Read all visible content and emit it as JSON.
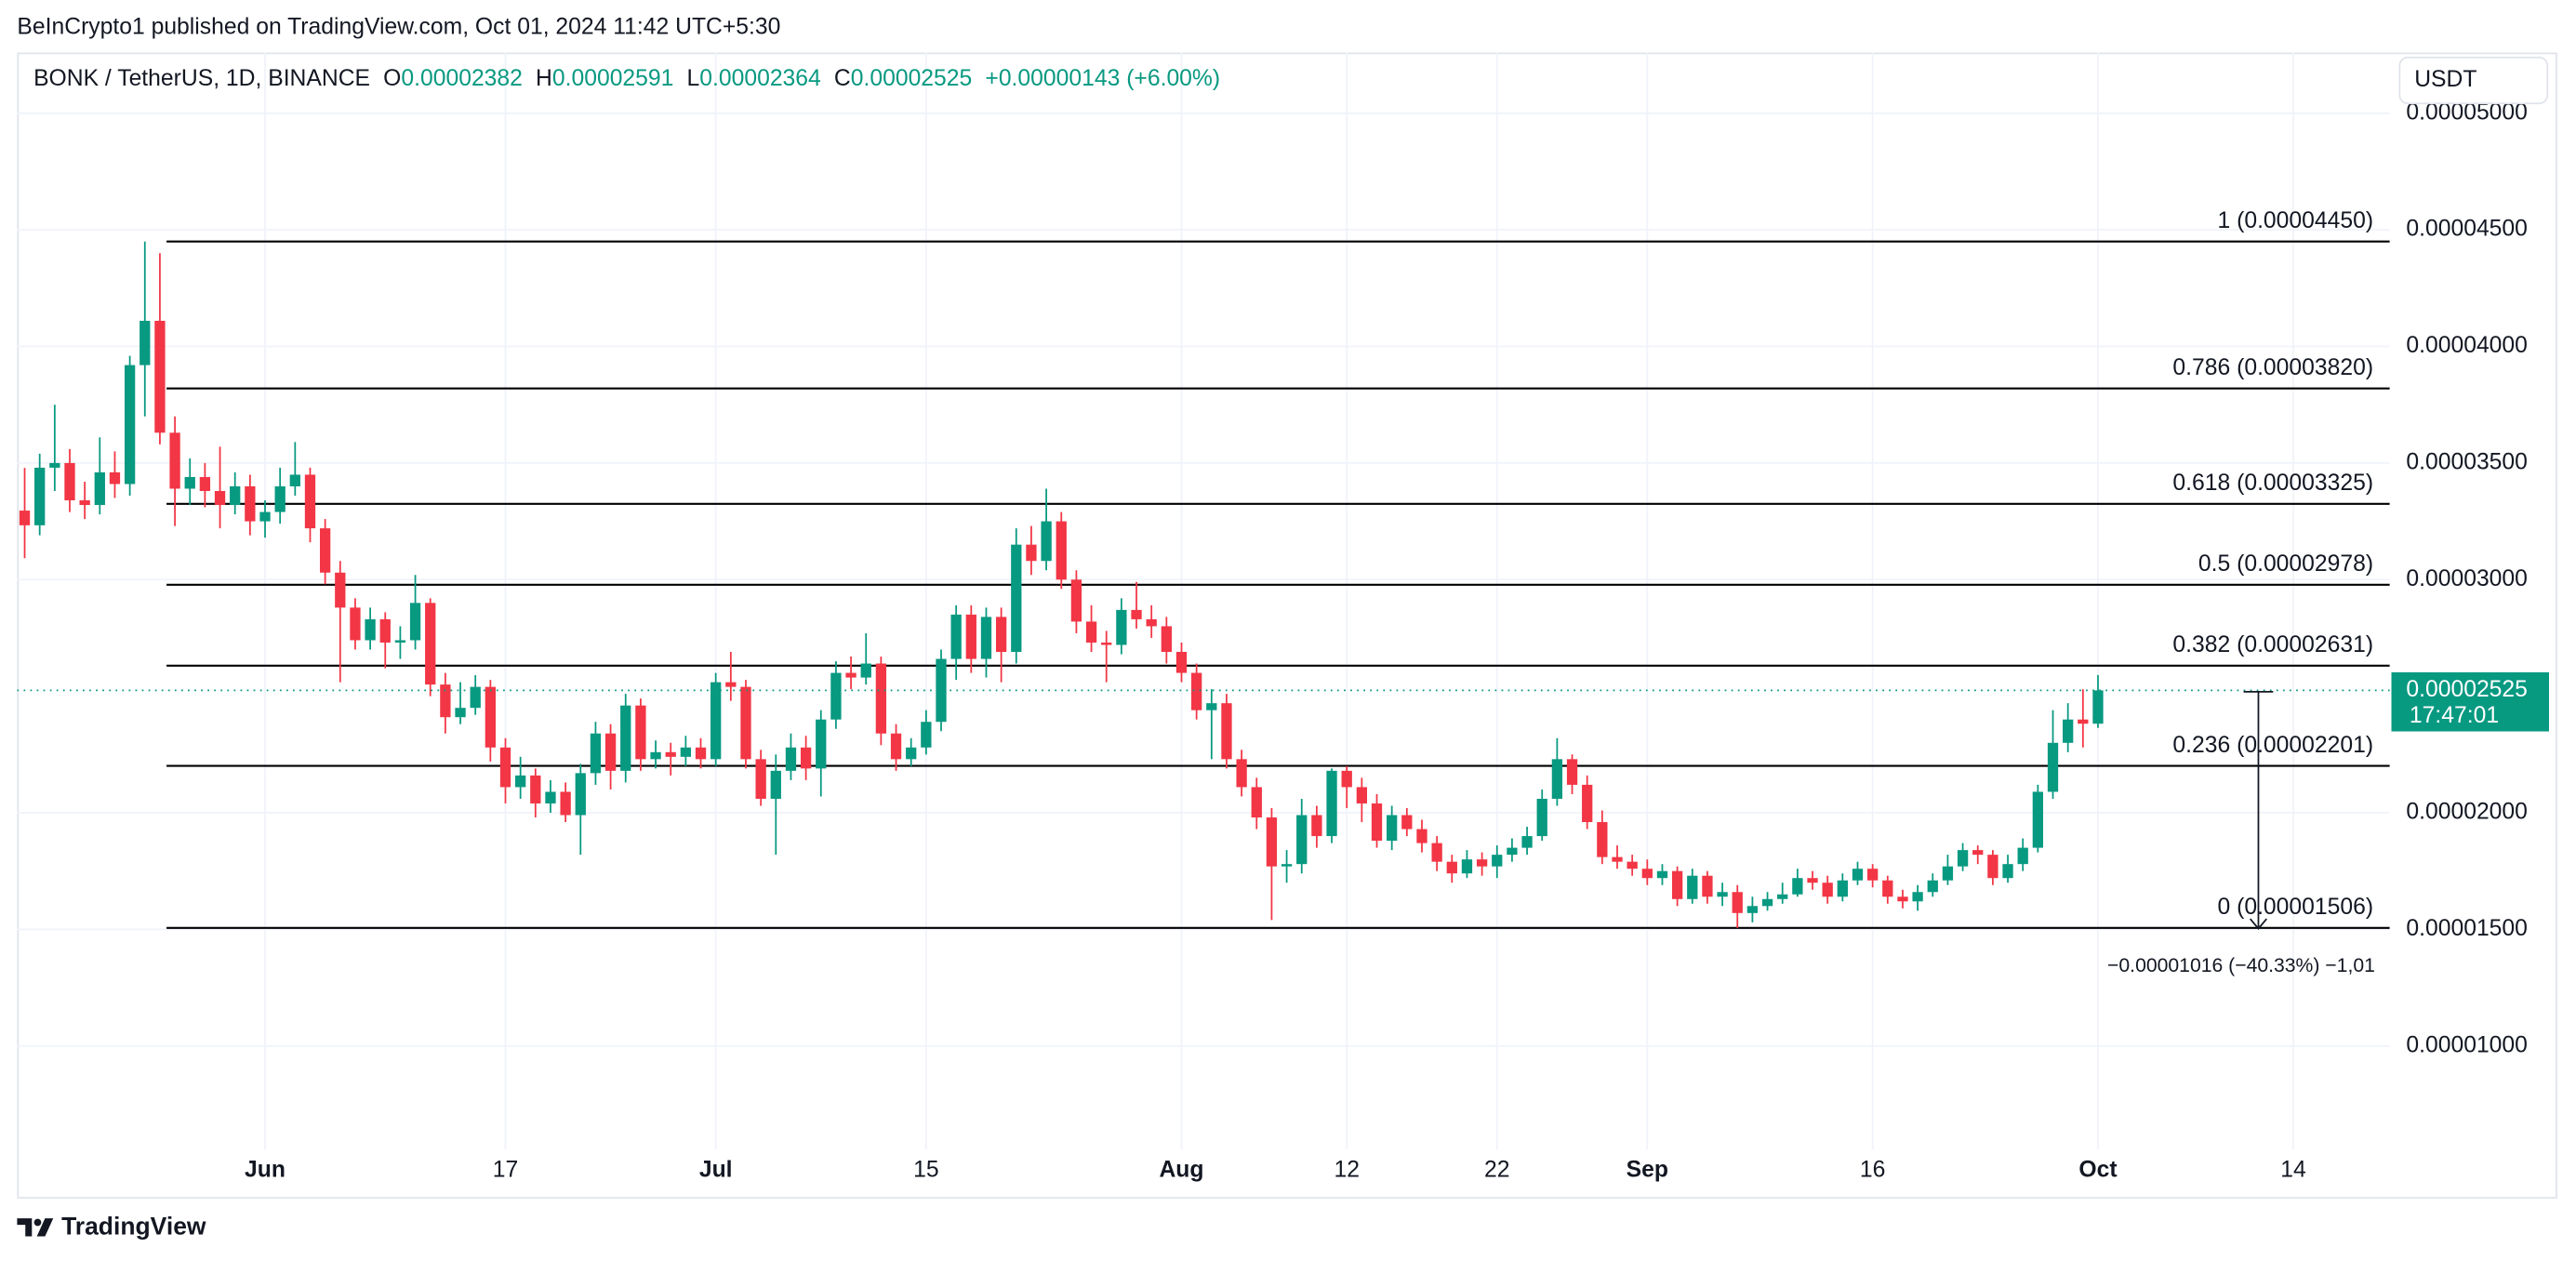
{
  "published": "BeInCrypto1 published on TradingView.com, Oct 01, 2024 11:42 UTC+5:30",
  "legend": {
    "symbol": "BONK / TetherUS, 1D, BINANCE",
    "items": [
      {
        "key": "O",
        "value": "0.00002382"
      },
      {
        "key": "H",
        "value": "0.00002591"
      },
      {
        "key": "L",
        "value": "0.00002364"
      },
      {
        "key": "C",
        "value": "0.00002525"
      }
    ],
    "change": "+0.00000143 (+6.00%)"
  },
  "currency_button": "USDT",
  "footer": "TradingView",
  "chart_data": {
    "type": "candlestick",
    "up_color": "#089981",
    "down_color": "#f23645",
    "categories": [
      null,
      null,
      null,
      null,
      null,
      null,
      null,
      null,
      null,
      null,
      null,
      null,
      null,
      null,
      null,
      null,
      "Jun",
      null,
      null,
      null,
      null,
      null,
      null,
      null,
      null,
      null,
      null,
      null,
      null,
      null,
      null,
      null,
      "17",
      null,
      null,
      null,
      null,
      null,
      null,
      null,
      null,
      null,
      null,
      null,
      null,
      null,
      "Jul",
      null,
      null,
      null,
      null,
      null,
      null,
      null,
      null,
      null,
      null,
      null,
      null,
      null,
      "15",
      null,
      null,
      null,
      null,
      null,
      null,
      null,
      null,
      null,
      null,
      null,
      null,
      null,
      null,
      null,
      null,
      "Aug",
      null,
      null,
      null,
      null,
      null,
      null,
      null,
      null,
      null,
      null,
      "12",
      null,
      null,
      null,
      null,
      null,
      null,
      null,
      null,
      null,
      "22",
      null,
      null,
      null,
      null,
      null,
      null,
      null,
      null,
      null,
      "Sep",
      null,
      null,
      null,
      null,
      null,
      null,
      null,
      null,
      null,
      null,
      null,
      null,
      null,
      null,
      "16",
      null,
      null,
      null,
      null,
      null,
      null,
      null,
      null,
      null,
      null,
      null,
      null,
      null,
      null,
      "Oct",
      null,
      null,
      null,
      null,
      null,
      null,
      null,
      null,
      null,
      null,
      null,
      null,
      "14",
      null,
      null,
      null,
      null,
      null,
      null
    ],
    "open": [
      3.296e-05,
      3.233e-05,
      3.48e-05,
      3.5e-05,
      3.34e-05,
      3.32e-05,
      3.46e-05,
      3.41e-05,
      3.92e-05,
      4.11e-05,
      3.63e-05,
      3.39e-05,
      3.44e-05,
      3.38e-05,
      3.32e-05,
      3.4e-05,
      3.25e-05,
      3.29e-05,
      3.4e-05,
      3.45e-05,
      3.22e-05,
      3.03e-05,
      2.88e-05,
      2.74e-05,
      2.83e-05,
      2.73e-05,
      2.74e-05,
      2.9e-05,
      2.55e-05,
      2.41e-05,
      2.45e-05,
      2.54e-05,
      2.28e-05,
      2.11e-05,
      2.16e-05,
      2.04e-05,
      2.09e-05,
      1.99e-05,
      2.17e-05,
      2.34e-05,
      2.18e-05,
      2.46e-05,
      2.23e-05,
      2.26e-05,
      2.24e-05,
      2.28e-05,
      2.23e-05,
      2.56e-05,
      2.54e-05,
      2.23e-05,
      2.06e-05,
      2.18e-05,
      2.28e-05,
      2.19e-05,
      2.4e-05,
      2.6e-05,
      2.58e-05,
      2.64e-05,
      2.34e-05,
      2.23e-05,
      2.28e-05,
      2.39e-05,
      2.66e-05,
      2.85e-05,
      2.66e-05,
      2.84e-05,
      2.69e-05,
      3.15e-05,
      3.08e-05,
      3.25e-05,
      3e-05,
      2.82e-05,
      2.73e-05,
      2.72e-05,
      2.87e-05,
      2.83e-05,
      2.8e-05,
      2.69e-05,
      2.6e-05,
      2.44e-05,
      2.47e-05,
      2.23e-05,
      2.11e-05,
      1.98e-05,
      1.77e-05,
      1.78e-05,
      1.99e-05,
      1.9e-05,
      2.18e-05,
      2.11e-05,
      2.04e-05,
      1.88e-05,
      1.99e-05,
      1.93e-05,
      1.87e-05,
      1.79e-05,
      1.74e-05,
      1.8e-05,
      1.77e-05,
      1.82e-05,
      1.85e-05,
      1.9e-05,
      2.06e-05,
      2.23e-05,
      2.12e-05,
      1.96e-05,
      1.81e-05,
      1.79e-05,
      1.76e-05,
      1.72e-05,
      1.75e-05,
      1.63e-05,
      1.73e-05,
      1.64e-05,
      1.66e-05,
      1.57e-05,
      1.6e-05,
      1.63e-05,
      1.65e-05,
      1.72e-05,
      1.7e-05,
      1.64e-05,
      1.71e-05,
      1.76e-05,
      1.71e-05,
      1.64e-05,
      1.62e-05,
      1.66e-05,
      1.71e-05,
      1.77e-05,
      1.84e-05,
      1.82e-05,
      1.72e-05,
      1.78e-05,
      1.85e-05,
      2.09e-05,
      2.3e-05,
      2.4e-05,
      2.382e-05,
      null,
      null,
      null,
      null,
      null,
      null,
      null,
      null,
      null,
      null,
      null,
      null,
      null,
      null,
      null,
      null,
      null,
      null,
      null
    ],
    "high": [
      3.479e-05,
      3.54e-05,
      3.75e-05,
      3.56e-05,
      3.42e-05,
      3.61e-05,
      3.55e-05,
      3.96e-05,
      4.45e-05,
      4.4e-05,
      3.7e-05,
      3.52e-05,
      3.5e-05,
      3.57e-05,
      3.46e-05,
      3.45e-05,
      3.34e-05,
      3.48e-05,
      3.59e-05,
      3.48e-05,
      3.26e-05,
      3.08e-05,
      2.92e-05,
      2.88e-05,
      2.86e-05,
      2.8e-05,
      3.02e-05,
      2.92e-05,
      2.6e-05,
      2.56e-05,
      2.59e-05,
      2.57e-05,
      2.32e-05,
      2.24e-05,
      2.19e-05,
      2.14e-05,
      2.13e-05,
      2.21e-05,
      2.39e-05,
      2.38e-05,
      2.51e-05,
      2.49e-05,
      2.31e-05,
      2.3e-05,
      2.33e-05,
      2.32e-05,
      2.6e-05,
      2.69e-05,
      2.57e-05,
      2.27e-05,
      2.25e-05,
      2.34e-05,
      2.33e-05,
      2.44e-05,
      2.65e-05,
      2.67e-05,
      2.77e-05,
      2.67e-05,
      2.38e-05,
      2.32e-05,
      2.44e-05,
      2.7e-05,
      2.89e-05,
      2.89e-05,
      2.88e-05,
      2.88e-05,
      3.22e-05,
      3.23e-05,
      3.39e-05,
      3.29e-05,
      3.04e-05,
      2.89e-05,
      2.78e-05,
      2.92e-05,
      2.99e-05,
      2.89e-05,
      2.84e-05,
      2.73e-05,
      2.64e-05,
      2.53e-05,
      2.51e-05,
      2.27e-05,
      2.15e-05,
      2.02e-05,
      1.84e-05,
      2.06e-05,
      2.03e-05,
      2.19e-05,
      2.2e-05,
      2.15e-05,
      2.08e-05,
      2.03e-05,
      2.02e-05,
      1.97e-05,
      1.9e-05,
      1.82e-05,
      1.84e-05,
      1.83e-05,
      1.86e-05,
      1.89e-05,
      1.94e-05,
      2.1e-05,
      2.32e-05,
      2.25e-05,
      2.16e-05,
      2.01e-05,
      1.86e-05,
      1.82e-05,
      1.8e-05,
      1.78e-05,
      1.77e-05,
      1.76e-05,
      1.75e-05,
      1.7e-05,
      1.69e-05,
      1.64e-05,
      1.66e-05,
      1.7e-05,
      1.76e-05,
      1.75e-05,
      1.73e-05,
      1.74e-05,
      1.79e-05,
      1.78e-05,
      1.73e-05,
      1.67e-05,
      1.69e-05,
      1.74e-05,
      1.82e-05,
      1.87e-05,
      1.86e-05,
      1.84e-05,
      1.82e-05,
      1.89e-05,
      2.12e-05,
      2.44e-05,
      2.47e-05,
      2.53e-05,
      2.591e-05,
      null,
      null,
      null,
      null,
      null,
      null,
      null,
      null,
      null,
      null,
      null,
      null,
      null,
      null,
      null,
      null,
      null,
      null,
      null
    ],
    "low": [
      3.092e-05,
      3.19e-05,
      3.38e-05,
      3.29e-05,
      3.26e-05,
      3.28e-05,
      3.35e-05,
      3.36e-05,
      3.7e-05,
      3.58e-05,
      3.23e-05,
      3.32e-05,
      3.31e-05,
      3.22e-05,
      3.28e-05,
      3.19e-05,
      3.18e-05,
      3.24e-05,
      3.36e-05,
      3.16e-05,
      2.98e-05,
      2.56e-05,
      2.7e-05,
      2.7e-05,
      2.62e-05,
      2.66e-05,
      2.7e-05,
      2.5e-05,
      2.34e-05,
      2.38e-05,
      2.42e-05,
      2.22e-05,
      2.04e-05,
      2.06e-05,
      1.98e-05,
      2e-05,
      1.96e-05,
      1.82e-05,
      2.12e-05,
      2.1e-05,
      2.13e-05,
      2.18e-05,
      2.19e-05,
      2.16e-05,
      2.2e-05,
      2.19e-05,
      2.2e-05,
      2.48e-05,
      2.19e-05,
      2.03e-05,
      1.82e-05,
      2.14e-05,
      2.14e-05,
      2.07e-05,
      2.36e-05,
      2.53e-05,
      2.55e-05,
      2.29e-05,
      2.18e-05,
      2.2e-05,
      2.25e-05,
      2.35e-05,
      2.57e-05,
      2.6e-05,
      2.58e-05,
      2.56e-05,
      2.64e-05,
      3.02e-05,
      3.04e-05,
      2.96e-05,
      2.77e-05,
      2.69e-05,
      2.56e-05,
      2.68e-05,
      2.79e-05,
      2.75e-05,
      2.64e-05,
      2.56e-05,
      2.4e-05,
      2.23e-05,
      2.19e-05,
      2.07e-05,
      1.93e-05,
      1.54e-05,
      1.7e-05,
      1.74e-05,
      1.85e-05,
      1.87e-05,
      2.02e-05,
      1.96e-05,
      1.85e-05,
      1.84e-05,
      1.9e-05,
      1.83e-05,
      1.75e-05,
      1.7e-05,
      1.72e-05,
      1.73e-05,
      1.72e-05,
      1.79e-05,
      1.82e-05,
      1.88e-05,
      2.03e-05,
      2.08e-05,
      1.93e-05,
      1.78e-05,
      1.76e-05,
      1.73e-05,
      1.69e-05,
      1.69e-05,
      1.6e-05,
      1.61e-05,
      1.61e-05,
      1.6e-05,
      1.506e-05,
      1.53e-05,
      1.58e-05,
      1.61e-05,
      1.64e-05,
      1.67e-05,
      1.61e-05,
      1.62e-05,
      1.69e-05,
      1.68e-05,
      1.61e-05,
      1.59e-05,
      1.58e-05,
      1.64e-05,
      1.69e-05,
      1.75e-05,
      1.78e-05,
      1.69e-05,
      1.7e-05,
      1.75e-05,
      1.83e-05,
      2.06e-05,
      2.26e-05,
      2.28e-05,
      2.364e-05,
      null,
      null,
      null,
      null,
      null,
      null,
      null,
      null,
      null,
      null,
      null,
      null,
      null,
      null,
      null,
      null,
      null,
      null,
      null
    ],
    "close": [
      3.233e-05,
      3.48e-05,
      3.5e-05,
      3.34e-05,
      3.32e-05,
      3.46e-05,
      3.41e-05,
      3.92e-05,
      4.11e-05,
      3.63e-05,
      3.39e-05,
      3.44e-05,
      3.38e-05,
      3.32e-05,
      3.4e-05,
      3.25e-05,
      3.29e-05,
      3.4e-05,
      3.45e-05,
      3.22e-05,
      3.03e-05,
      2.88e-05,
      2.74e-05,
      2.83e-05,
      2.73e-05,
      2.74e-05,
      2.9e-05,
      2.55e-05,
      2.41e-05,
      2.45e-05,
      2.54e-05,
      2.28e-05,
      2.11e-05,
      2.16e-05,
      2.04e-05,
      2.09e-05,
      1.99e-05,
      2.17e-05,
      2.34e-05,
      2.18e-05,
      2.46e-05,
      2.23e-05,
      2.26e-05,
      2.24e-05,
      2.28e-05,
      2.23e-05,
      2.56e-05,
      2.54e-05,
      2.23e-05,
      2.06e-05,
      2.18e-05,
      2.28e-05,
      2.19e-05,
      2.4e-05,
      2.6e-05,
      2.58e-05,
      2.64e-05,
      2.34e-05,
      2.23e-05,
      2.28e-05,
      2.39e-05,
      2.66e-05,
      2.85e-05,
      2.66e-05,
      2.84e-05,
      2.69e-05,
      3.15e-05,
      3.08e-05,
      3.25e-05,
      3e-05,
      2.82e-05,
      2.73e-05,
      2.72e-05,
      2.87e-05,
      2.83e-05,
      2.8e-05,
      2.69e-05,
      2.6e-05,
      2.44e-05,
      2.47e-05,
      2.23e-05,
      2.11e-05,
      1.98e-05,
      1.77e-05,
      1.78e-05,
      1.99e-05,
      1.9e-05,
      2.18e-05,
      2.11e-05,
      2.04e-05,
      1.88e-05,
      1.99e-05,
      1.93e-05,
      1.87e-05,
      1.79e-05,
      1.74e-05,
      1.8e-05,
      1.77e-05,
      1.82e-05,
      1.85e-05,
      1.9e-05,
      2.06e-05,
      2.23e-05,
      2.12e-05,
      1.96e-05,
      1.81e-05,
      1.79e-05,
      1.76e-05,
      1.72e-05,
      1.75e-05,
      1.63e-05,
      1.73e-05,
      1.64e-05,
      1.66e-05,
      1.57e-05,
      1.6e-05,
      1.63e-05,
      1.65e-05,
      1.72e-05,
      1.7e-05,
      1.64e-05,
      1.71e-05,
      1.76e-05,
      1.71e-05,
      1.64e-05,
      1.62e-05,
      1.66e-05,
      1.71e-05,
      1.77e-05,
      1.84e-05,
      1.82e-05,
      1.72e-05,
      1.78e-05,
      1.85e-05,
      2.09e-05,
      2.3e-05,
      2.4e-05,
      2.382e-05,
      2.525e-05,
      null,
      null,
      null,
      null,
      null,
      null,
      null,
      null,
      null,
      null,
      null,
      null,
      null,
      null,
      null,
      null,
      null,
      null,
      null
    ],
    "ylim": [
      5.565e-06,
      5.007e-05
    ],
    "yticks": [
      {
        "value": 5e-05,
        "label": "0.00005000"
      },
      {
        "value": 4.5e-05,
        "label": "0.00004500"
      },
      {
        "value": 4e-05,
        "label": "0.00004000"
      },
      {
        "value": 3.5e-05,
        "label": "0.00003500"
      },
      {
        "value": 3e-05,
        "label": "0.00003000"
      },
      {
        "value": 2e-05,
        "label": "0.00002000"
      },
      {
        "value": 1.5e-05,
        "label": "0.00001500"
      },
      {
        "value": 1e-05,
        "label": "0.00001000"
      }
    ],
    "grid": true,
    "fib_levels": [
      {
        "label": "1 (0.00004450)",
        "value": 4.45e-05
      },
      {
        "label": "0.786 (0.00003820)",
        "value": 3.82e-05
      },
      {
        "label": "0.618 (0.00003325)",
        "value": 3.325e-05
      },
      {
        "label": "0.5 (0.00002978)",
        "value": 2.978e-05
      },
      {
        "label": "0.382 (0.00002631)",
        "value": 2.631e-05
      },
      {
        "label": "0.236 (0.00002201)",
        "value": 2.201e-05
      },
      {
        "label": "0 (0.00001506)",
        "value": 1.506e-05
      }
    ],
    "fib_color": "#000000",
    "last_price": {
      "value": 2.525e-05,
      "label": "0.00002525",
      "countdown": "17:47:01"
    },
    "measure": {
      "from": 2.519e-05,
      "to": 1.503e-05,
      "label": "−0.00001016 (−40.33%) −1,01"
    }
  }
}
